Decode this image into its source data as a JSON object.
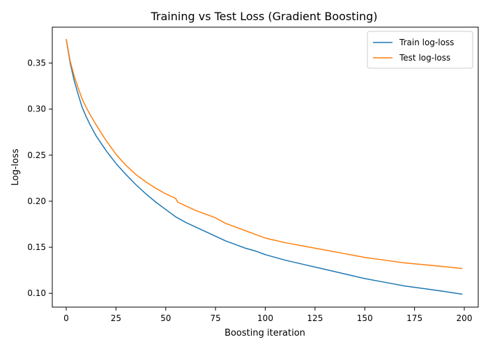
{
  "chart_data": {
    "type": "line",
    "title": "Training vs Test Loss (Gradient Boosting)",
    "xlabel": "Boosting iteration",
    "ylabel": "Log-loss",
    "xlim": [
      -7,
      207
    ],
    "ylim": [
      0.085,
      0.389
    ],
    "xticks": [
      0,
      25,
      50,
      75,
      100,
      125,
      150,
      175,
      200
    ],
    "yticks": [
      0.1,
      0.15,
      0.2,
      0.25,
      0.3,
      0.35
    ],
    "grid": false,
    "legend_position": "upper-right",
    "series": [
      {
        "name": "Train log-loss",
        "color": "#1f77b4",
        "x": [
          0,
          2,
          4,
          6,
          8,
          10,
          12,
          15,
          20,
          25,
          30,
          35,
          40,
          45,
          50,
          55,
          60,
          65,
          70,
          75,
          80,
          85,
          90,
          95,
          100,
          110,
          120,
          130,
          140,
          150,
          160,
          170,
          180,
          190,
          199
        ],
        "y": [
          0.376,
          0.35,
          0.331,
          0.316,
          0.302,
          0.292,
          0.283,
          0.271,
          0.255,
          0.241,
          0.229,
          0.218,
          0.208,
          0.199,
          0.191,
          0.183,
          0.177,
          0.172,
          0.167,
          0.162,
          0.157,
          0.153,
          0.149,
          0.146,
          0.142,
          0.136,
          0.131,
          0.126,
          0.121,
          0.116,
          0.112,
          0.108,
          0.105,
          0.102,
          0.099
        ]
      },
      {
        "name": "Test log-loss",
        "color": "#ff7f0e",
        "x": [
          0,
          2,
          4,
          6,
          8,
          10,
          12,
          15,
          20,
          25,
          30,
          35,
          40,
          45,
          50,
          55,
          56,
          60,
          65,
          70,
          75,
          80,
          85,
          90,
          95,
          100,
          110,
          120,
          130,
          140,
          150,
          160,
          170,
          180,
          190,
          199
        ],
        "y": [
          0.376,
          0.352,
          0.336,
          0.323,
          0.311,
          0.302,
          0.294,
          0.283,
          0.266,
          0.251,
          0.239,
          0.229,
          0.221,
          0.214,
          0.208,
          0.203,
          0.199,
          0.195,
          0.19,
          0.186,
          0.182,
          0.176,
          0.172,
          0.168,
          0.164,
          0.16,
          0.155,
          0.151,
          0.147,
          0.143,
          0.139,
          0.136,
          0.133,
          0.131,
          0.129,
          0.127
        ]
      }
    ]
  }
}
